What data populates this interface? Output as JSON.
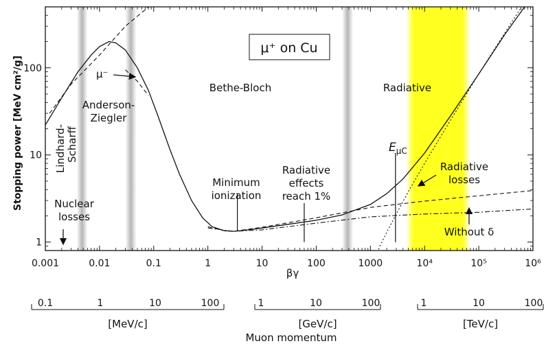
{
  "chart_data": {
    "type": "line",
    "title": "μ⁺ on Cu",
    "xlabel": "βγ",
    "ylabel": "Stopping power [MeV cm²/g]",
    "x_scale": "log",
    "y_scale": "log",
    "xlim": [
      0.001,
      1000000
    ],
    "ylim": [
      0.8,
      500
    ],
    "x_ticks": [
      {
        "v": 0.001,
        "label": "0.001"
      },
      {
        "v": 0.01,
        "label": "0.01"
      },
      {
        "v": 0.1,
        "label": "0.1"
      },
      {
        "v": 1,
        "label": "1"
      },
      {
        "v": 10,
        "label": "10"
      },
      {
        "v": 100,
        "label": "100"
      },
      {
        "v": 1000,
        "label": "1000"
      },
      {
        "v": 10000,
        "label": "10⁴"
      },
      {
        "v": 100000,
        "label": "10⁵"
      },
      {
        "v": 1000000,
        "label": "10⁶"
      }
    ],
    "y_ticks": [
      {
        "v": 1,
        "label": "1"
      },
      {
        "v": 10,
        "label": "10"
      },
      {
        "v": 100,
        "label": "100"
      }
    ],
    "grid": false,
    "series": [
      {
        "style": "solid",
        "x": [
          0.001,
          0.002,
          0.004,
          0.007,
          0.01,
          0.015,
          0.02,
          0.03,
          0.05,
          0.08,
          0.12,
          0.2,
          0.3,
          0.5,
          0.8,
          1.2,
          2,
          3,
          4,
          6,
          10,
          30,
          100,
          300,
          1000,
          2000,
          4000,
          10000,
          30000,
          100000,
          300000,
          1000000
        ],
        "y": [
          22,
          45,
          90,
          140,
          175,
          200,
          193,
          160,
          100,
          55,
          28,
          11.5,
          6,
          3,
          1.9,
          1.5,
          1.35,
          1.33,
          1.35,
          1.39,
          1.45,
          1.6,
          1.78,
          2.05,
          2.7,
          3.6,
          5.3,
          10.5,
          28,
          85,
          240,
          680
        ]
      },
      {
        "style": "dashed",
        "x": [
          0.0012,
          0.003,
          0.01,
          0.03,
          0.1
        ],
        "y": [
          30,
          65,
          140,
          300,
          560
        ]
      },
      {
        "style": "dashed",
        "x": [
          0.03,
          0.05,
          0.08
        ],
        "y": [
          95,
          70,
          48
        ]
      },
      {
        "style": "dashed",
        "x": [
          1,
          2,
          3,
          10,
          100,
          1000,
          10000,
          100000,
          1000000
        ],
        "y": [
          1.5,
          1.35,
          1.33,
          1.48,
          1.9,
          2.5,
          2.95,
          3.4,
          3.9
        ]
      },
      {
        "style": "dashdot",
        "x": [
          1,
          3,
          10,
          100,
          1000,
          10000,
          100000,
          1000000
        ],
        "y": [
          1.45,
          1.33,
          1.38,
          1.65,
          1.95,
          2.1,
          2.2,
          2.4
        ]
      },
      {
        "style": "dotted",
        "x": [
          1000,
          1500,
          2000,
          3000,
          5000,
          10000,
          30000,
          100000,
          300000,
          1000000
        ],
        "y": [
          0.5,
          0.9,
          1.3,
          2.1,
          3.8,
          8,
          25,
          85,
          250,
          800
        ]
      }
    ],
    "bands": [
      {
        "x1": 0.0038,
        "x2": 0.006,
        "color": "#c8c8c8"
      },
      {
        "x1": 0.03,
        "x2": 0.048,
        "color": "#c8c8c8"
      },
      {
        "x1": 300,
        "x2": 480,
        "color": "#c8c8c8"
      },
      {
        "x1": 4500,
        "x2": 70000,
        "color": "#ffff33"
      }
    ],
    "markers": [
      {
        "x": 3.5,
        "y_top": 3.6,
        "y_bot": 1.33
      },
      {
        "x": 60,
        "y_top": 2.8,
        "y_bot": 1.0
      },
      {
        "x": 2900,
        "y_top": 10.5,
        "y_bot": 1.0
      }
    ],
    "annotations": {
      "mu_minus": "μ⁻",
      "anderson": [
        "Anderson-",
        "Ziegler"
      ],
      "lindhard": [
        "Lindhard-",
        "Scharff"
      ],
      "bethe": "Bethe-Bloch",
      "radiative": "Radiative",
      "nuclear": [
        "Nuclear",
        "losses"
      ],
      "min_ion": [
        "Minimum",
        "ionization"
      ],
      "rad_effects": [
        "Radiative",
        "effects",
        "reach 1%"
      ],
      "e_mu_c": "E",
      "e_mu_c_sub": "μC",
      "rad_losses": [
        "Radiative",
        "losses"
      ],
      "without_delta": "Without δ"
    },
    "momentum": {
      "title": "Muon momentum",
      "scales": [
        {
          "unit": "[MeV/c]",
          "ticks": [
            "0.1",
            "1",
            "10",
            "100"
          ]
        },
        {
          "unit": "[GeV/c]",
          "ticks": [
            "1",
            "10",
            "100"
          ]
        },
        {
          "unit": "[TeV/c]",
          "ticks": [
            "1",
            "10",
            "100"
          ]
        }
      ]
    }
  }
}
